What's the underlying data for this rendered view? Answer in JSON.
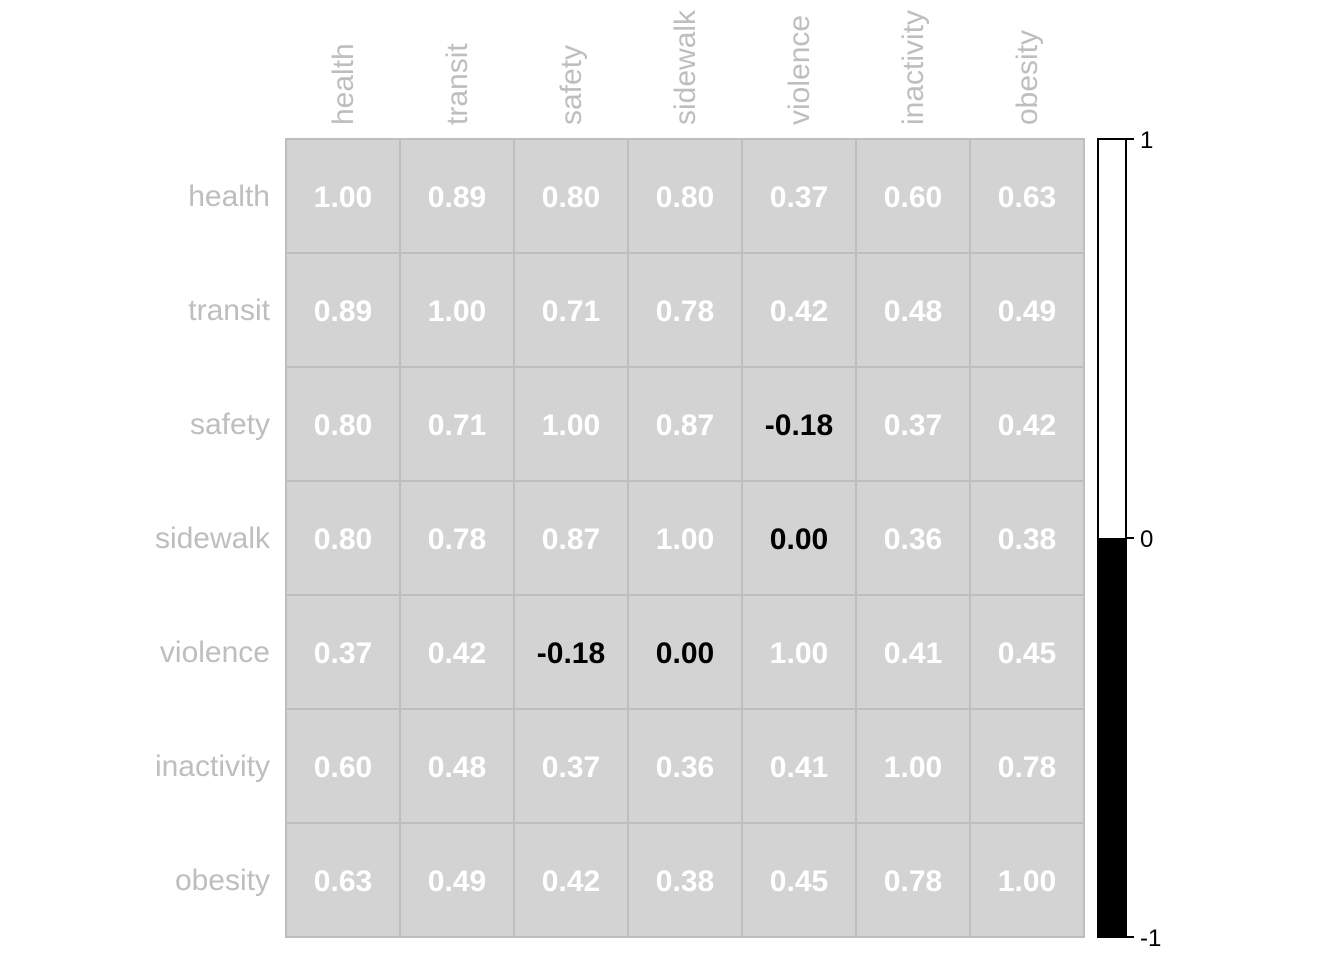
{
  "chart_data": {
    "type": "heatmap",
    "variables": [
      "health",
      "transit",
      "safety",
      "sidewalk",
      "violence",
      "inactivity",
      "obesity"
    ],
    "matrix": [
      [
        1.0,
        0.89,
        0.8,
        0.8,
        0.37,
        0.6,
        0.63
      ],
      [
        0.89,
        1.0,
        0.71,
        0.78,
        0.42,
        0.48,
        0.49
      ],
      [
        0.8,
        0.71,
        1.0,
        0.87,
        -0.18,
        0.37,
        0.42
      ],
      [
        0.8,
        0.78,
        0.87,
        1.0,
        0.0,
        0.36,
        0.38
      ],
      [
        0.37,
        0.42,
        -0.18,
        0.0,
        1.0,
        0.41,
        0.45
      ],
      [
        0.6,
        0.48,
        0.37,
        0.36,
        0.41,
        1.0,
        0.78
      ],
      [
        0.63,
        0.49,
        0.42,
        0.38,
        0.45,
        0.78,
        1.0
      ]
    ],
    "value_labels": [
      [
        "1.00",
        "0.89",
        "0.80",
        "0.80",
        "0.37",
        "0.60",
        "0.63"
      ],
      [
        "0.89",
        "1.00",
        "0.71",
        "0.78",
        "0.42",
        "0.48",
        "0.49"
      ],
      [
        "0.80",
        "0.71",
        "1.00",
        "0.87",
        "-0.18",
        "0.37",
        "0.42"
      ],
      [
        "0.80",
        "0.78",
        "0.87",
        "1.00",
        "0.00",
        "0.36",
        "0.38"
      ],
      [
        "0.37",
        "0.42",
        "-0.18",
        "0.00",
        "1.00",
        "0.41",
        "0.45"
      ],
      [
        "0.60",
        "0.48",
        "0.37",
        "0.36",
        "0.41",
        "1.00",
        "0.78"
      ],
      [
        "0.63",
        "0.49",
        "0.42",
        "0.38",
        "0.45",
        "0.78",
        "1.00"
      ]
    ],
    "legend": {
      "range": [
        -1,
        1
      ],
      "ticks": [
        "1",
        "0",
        "-1"
      ],
      "tick_values": [
        1,
        0,
        -1
      ],
      "positive_color": "#ffffff",
      "negative_color": "#000000",
      "placement": "right"
    },
    "colors": {
      "cell_fill": "#d3d3d3",
      "grid_line": "#bebebe",
      "label_text": "#bebebe",
      "positive_value_text": "#ffffff",
      "negative_value_text": "#000000"
    },
    "grid": true
  }
}
